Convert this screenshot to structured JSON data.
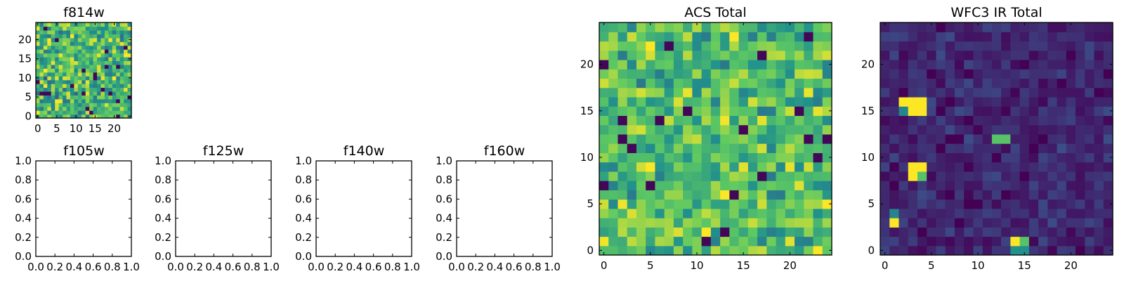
{
  "chart_data": [
    {
      "id": "f814w",
      "type": "heatmap",
      "title": "f814w",
      "grid_size": 25,
      "xlim": [
        -0.5,
        24.5
      ],
      "ylim": [
        -0.5,
        24.5
      ],
      "xticks": [
        0,
        5,
        10,
        15,
        20
      ],
      "yticks": [
        0,
        5,
        10,
        15,
        20
      ],
      "colormap": [
        "#440154",
        "#3b528b",
        "#21918c",
        "#5ec962",
        "#fde725"
      ],
      "value_range": [
        0.0,
        1.0
      ],
      "random_fill": {
        "seed": 814,
        "mean": 0.68,
        "spread": 0.38
      }
    },
    {
      "id": "f105w",
      "type": "empty",
      "title": "f105w",
      "xlim": [
        0.0,
        1.0
      ],
      "ylim": [
        0.0,
        1.0
      ],
      "xtick_labels": [
        "0.0",
        "0.2",
        "0.4",
        "0.6",
        "0.8",
        "1.0"
      ],
      "ytick_labels": [
        "0.0",
        "0.2",
        "0.4",
        "0.6",
        "0.8",
        "1.0"
      ]
    },
    {
      "id": "f125w",
      "type": "empty",
      "title": "f125w",
      "xlim": [
        0.0,
        1.0
      ],
      "ylim": [
        0.0,
        1.0
      ],
      "xtick_labels": [
        "0.0",
        "0.2",
        "0.4",
        "0.6",
        "0.8",
        "1.0"
      ],
      "ytick_labels": [
        "0.0",
        "0.2",
        "0.4",
        "0.6",
        "0.8",
        "1.0"
      ]
    },
    {
      "id": "f140w",
      "type": "empty",
      "title": "f140w",
      "xlim": [
        0.0,
        1.0
      ],
      "ylim": [
        0.0,
        1.0
      ],
      "xtick_labels": [
        "0.0",
        "0.2",
        "0.4",
        "0.6",
        "0.8",
        "1.0"
      ],
      "ytick_labels": [
        "0.0",
        "0.2",
        "0.4",
        "0.6",
        "0.8",
        "1.0"
      ]
    },
    {
      "id": "f160w",
      "type": "empty",
      "title": "f160w",
      "xlim": [
        0.0,
        1.0
      ],
      "ylim": [
        0.0,
        1.0
      ],
      "xtick_labels": [
        "0.0",
        "0.2",
        "0.4",
        "0.6",
        "0.8",
        "1.0"
      ],
      "ytick_labels": [
        "0.0",
        "0.2",
        "0.4",
        "0.6",
        "0.8",
        "1.0"
      ]
    },
    {
      "id": "acs-total",
      "type": "heatmap",
      "title": "ACS Total",
      "grid_size": 25,
      "xlim": [
        -0.5,
        24.5
      ],
      "ylim": [
        -0.5,
        24.5
      ],
      "xticks": [
        0,
        5,
        10,
        15,
        20
      ],
      "yticks": [
        0,
        5,
        10,
        15,
        20
      ],
      "colormap": [
        "#440154",
        "#3b528b",
        "#21918c",
        "#5ec962",
        "#fde725"
      ],
      "value_range": [
        0.0,
        1.0
      ],
      "random_fill": {
        "seed": 4242,
        "mean": 0.72,
        "spread": 0.32
      }
    },
    {
      "id": "wfc3-ir-total",
      "type": "heatmap",
      "title": "WFC3 IR Total",
      "grid_size": 25,
      "xlim": [
        -0.5,
        24.5
      ],
      "ylim": [
        -0.5,
        24.5
      ],
      "xticks": [
        0,
        5,
        10,
        15,
        20
      ],
      "yticks": [
        0,
        5,
        10,
        15,
        20
      ],
      "colormap": [
        "#440154",
        "#3b528b",
        "#21918c",
        "#5ec962",
        "#fde725"
      ],
      "value_range": [
        0.0,
        1.0
      ],
      "random_fill": {
        "seed": 1616,
        "mean": 0.12,
        "spread": 0.12
      },
      "bright_pixels": [
        {
          "x": 3,
          "y": 15,
          "value": 1.0
        },
        {
          "x": 4,
          "y": 15,
          "value": 1.0
        },
        {
          "x": 3,
          "y": 16,
          "value": 1.0
        },
        {
          "x": 2,
          "y": 16,
          "value": 1.0
        },
        {
          "x": 4,
          "y": 16,
          "value": 1.0
        },
        {
          "x": 2,
          "y": 15,
          "value": 0.45
        },
        {
          "x": 3,
          "y": 8,
          "value": 1.0
        },
        {
          "x": 3,
          "y": 9,
          "value": 1.0
        },
        {
          "x": 4,
          "y": 9,
          "value": 1.0
        },
        {
          "x": 4,
          "y": 8,
          "value": 0.72
        },
        {
          "x": 12,
          "y": 12,
          "value": 0.72
        },
        {
          "x": 13,
          "y": 12,
          "value": 0.72
        },
        {
          "x": 1,
          "y": 3,
          "value": 1.0
        },
        {
          "x": 1,
          "y": 4,
          "value": 0.45
        },
        {
          "x": 14,
          "y": 1,
          "value": 1.0
        },
        {
          "x": 15,
          "y": 1,
          "value": 0.72
        },
        {
          "x": 14,
          "y": 0,
          "value": 0.5
        },
        {
          "x": 15,
          "y": 0,
          "value": 0.5
        }
      ]
    }
  ]
}
